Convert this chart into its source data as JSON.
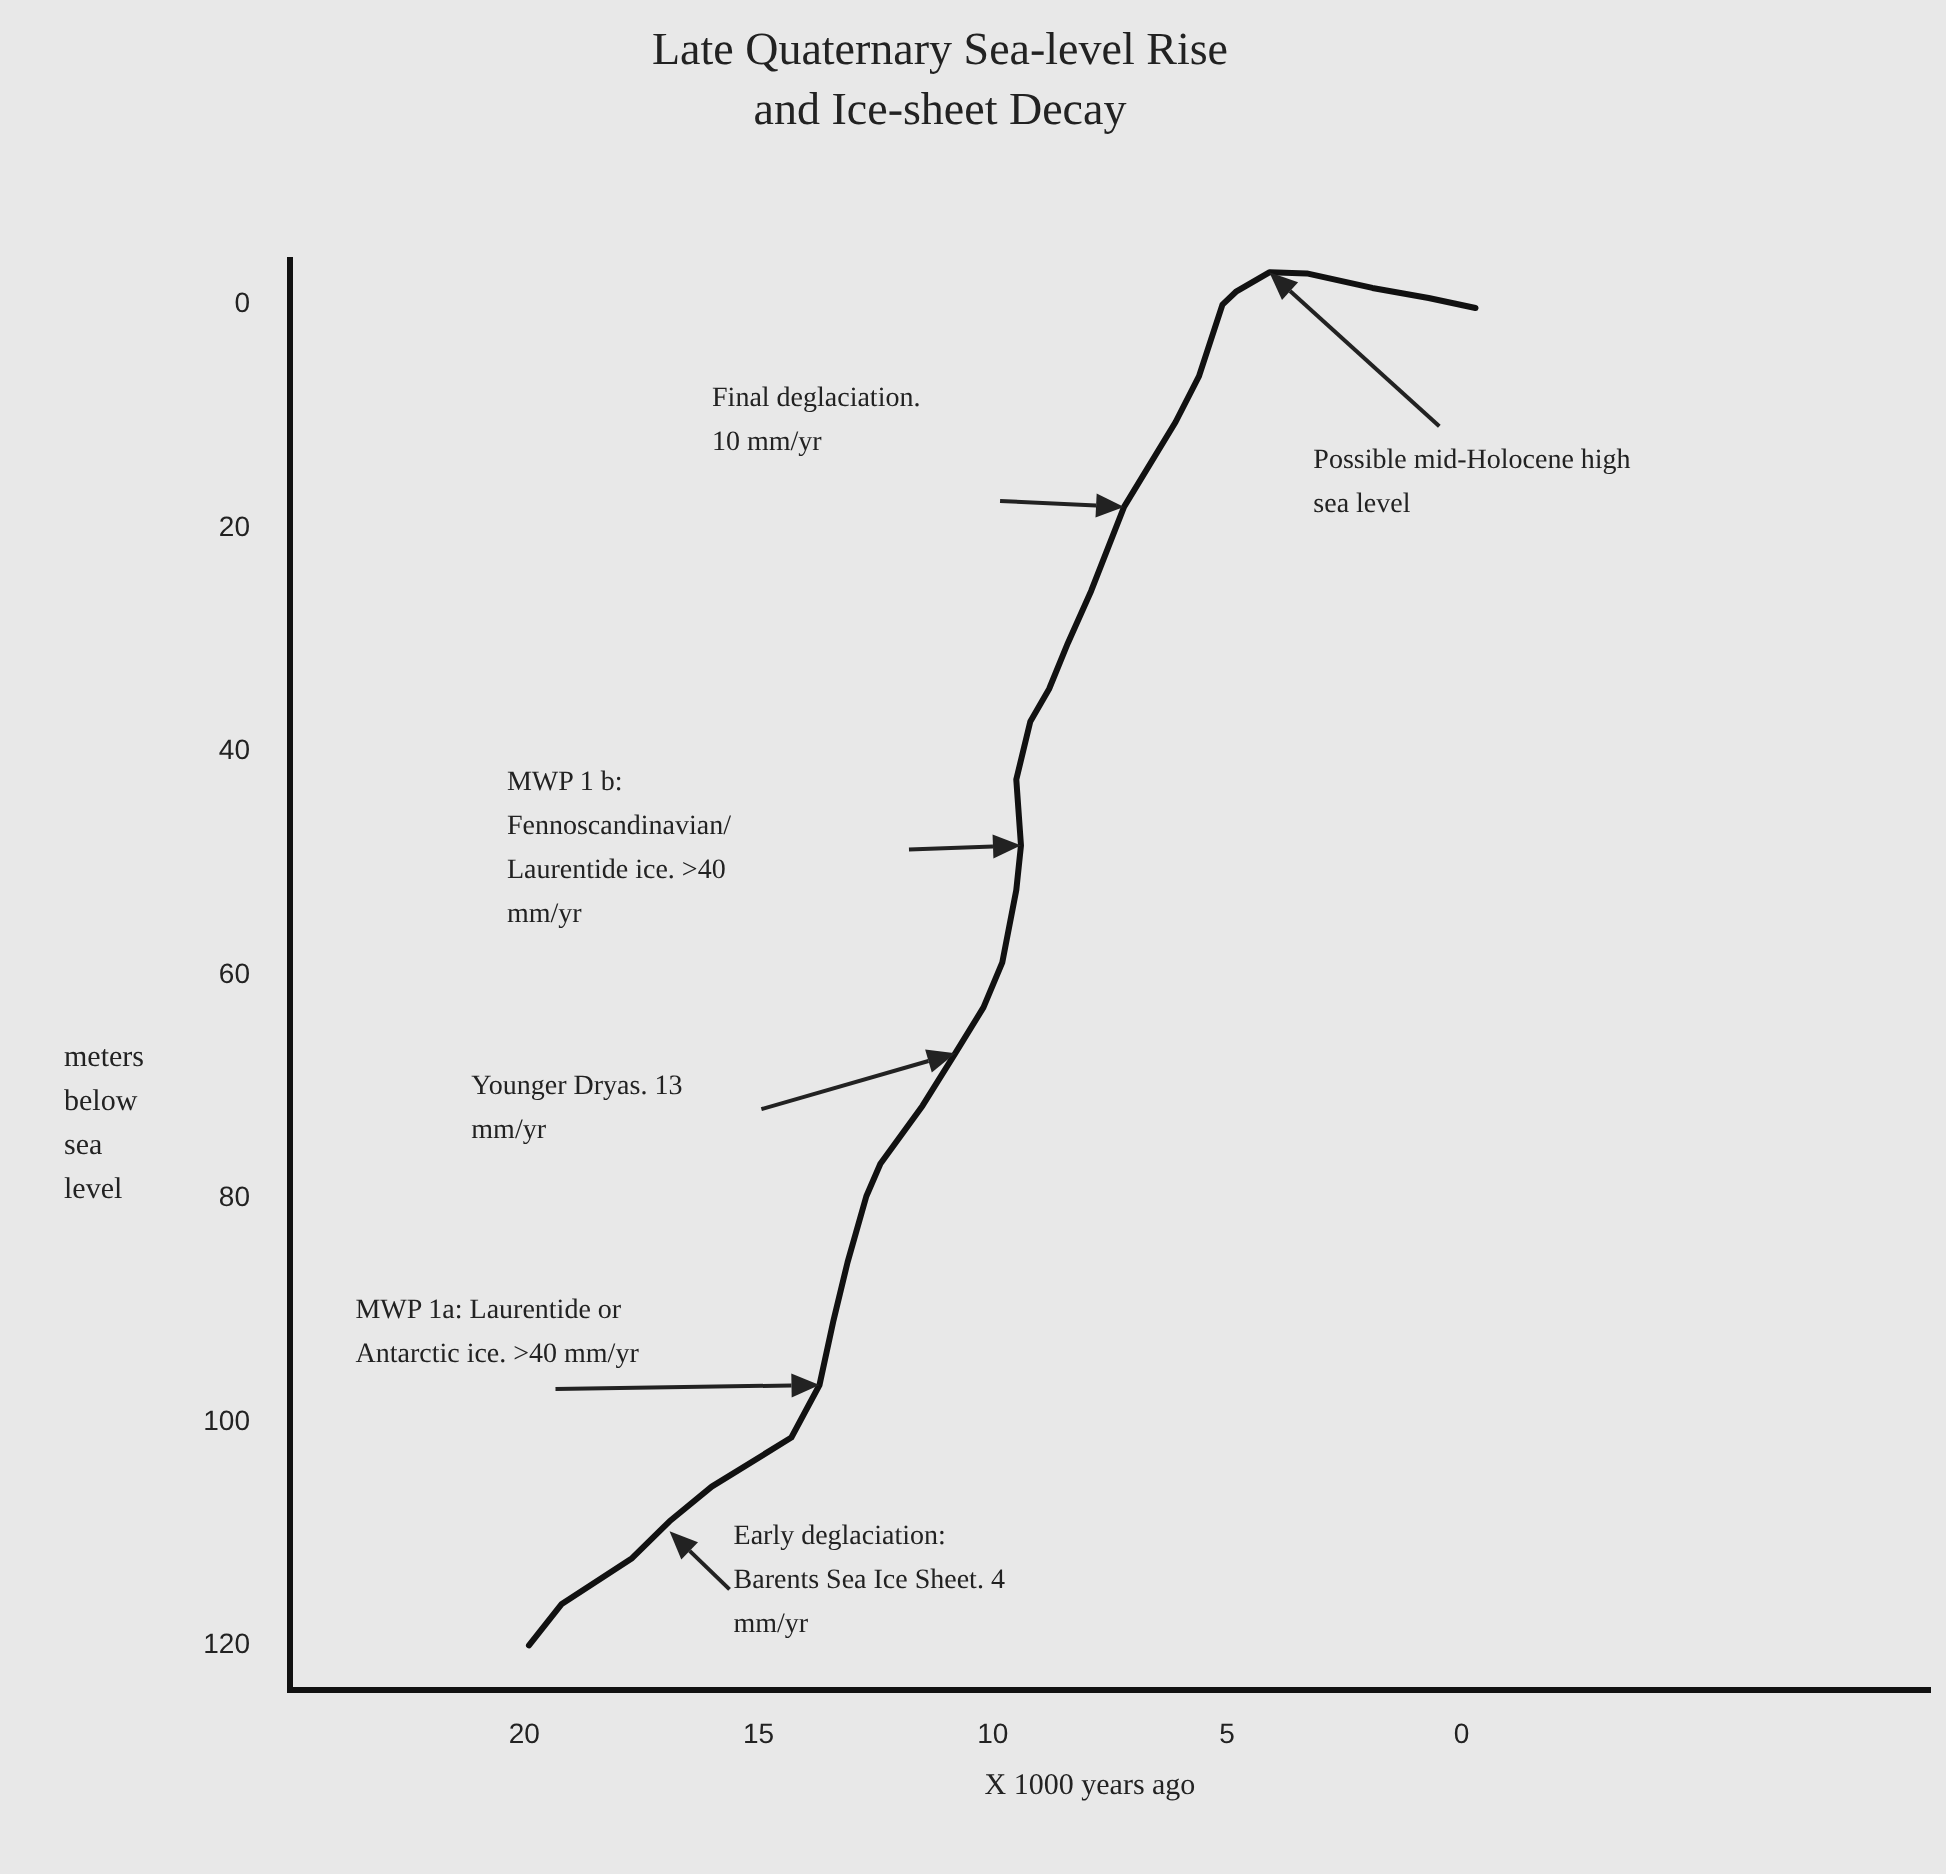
{
  "chart_data": {
    "type": "line",
    "title": "Late Quaternary Sea-level Rise\nand Ice-sheet Decay",
    "xlabel": "X 1000 years ago",
    "ylabel": "meters\nbelow\nsea\nlevel",
    "x": [
      19.9,
      19.2,
      17.7,
      16.9,
      16.0,
      14.3,
      13.7,
      13.4,
      13.1,
      12.7,
      12.4,
      11.5,
      10.8,
      10.2,
      9.8,
      9.5,
      9.4,
      9.5,
      9.2,
      8.8,
      8.4,
      7.9,
      7.2,
      6.1,
      5.6,
      5.1,
      4.8,
      4.1,
      3.3,
      1.9,
      0.7,
      -0.3
    ],
    "series": [
      {
        "color": "#111111",
        "values": [
          120,
          116.3,
          112.2,
          108.9,
          105.8,
          101.4,
          96.7,
          90.9,
          85.7,
          79.8,
          76.9,
          71.7,
          67.0,
          62.9,
          58.9,
          52.4,
          48.4,
          42.5,
          37.3,
          34.4,
          30.3,
          25.6,
          18.1,
          10.5,
          6.4,
          0,
          -1.2,
          -2.9,
          -2.8,
          -1.5,
          -0.6,
          0.3
        ]
      }
    ],
    "xlim": [
      25,
      -10
    ],
    "xticks": [
      20,
      15,
      10,
      5,
      0
    ],
    "ylim": [
      124,
      -4
    ],
    "yticks": [
      0,
      20,
      40,
      60,
      80,
      100,
      120
    ],
    "grid": false,
    "legend": false,
    "annotations": [
      "Final deglaciation.\n10 mm/yr",
      "Possible mid-Holocene high\nsea level",
      "MWP 1 b:\nFennoscandinavian/\nLaurentide ice. >40\nmm/yr",
      "Younger Dryas. 13\nmm/yr",
      "MWP 1a: Laurentide or\nAntarctic ice. >40 mm/yr",
      {
        "text": "Early deglaciation:\nBarents Sea Ice Sheet. 4\nmm/yr",
        "x": 16.9,
        "y": 109.8
      }
    ]
  }
}
